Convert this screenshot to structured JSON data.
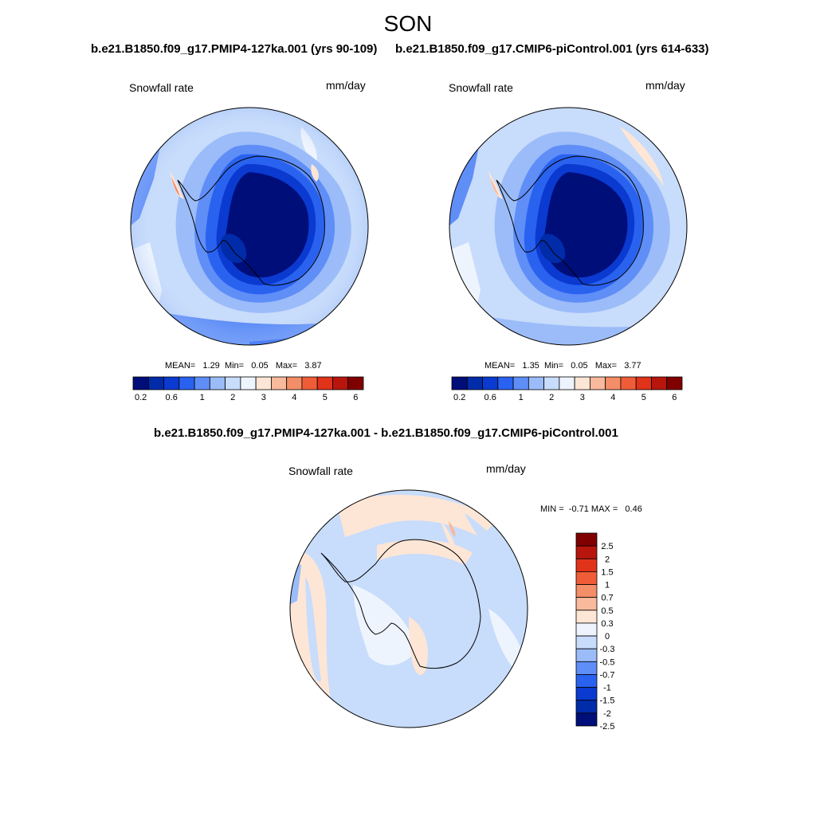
{
  "season": "SON",
  "colors": {
    "seq": [
      "#000e7a",
      "#002ba9",
      "#0a3ad0",
      "#2a62f0",
      "#5f8ef7",
      "#9bbcf9",
      "#c8dcfb",
      "#eef4fd",
      "#fde6d6",
      "#f8b99c",
      "#f38e68",
      "#ef5d38",
      "#e0331a",
      "#b8160d",
      "#800000"
    ],
    "div": [
      "#800000",
      "#b8160d",
      "#e0331a",
      "#ef5d38",
      "#f38e68",
      "#f8b99c",
      "#fde6d6",
      "#eef4fd",
      "#c8dcfb",
      "#9bbcf9",
      "#5f8ef7",
      "#2a62f0",
      "#0a3ad0",
      "#002ba9",
      "#000e7a"
    ]
  },
  "panels": [
    {
      "title": "b.e21.B1850.f09_g17.PMIP4-127ka.001 (yrs 90-109)",
      "variable": "Snowfall rate",
      "units": "mm/day",
      "stats": {
        "mean_label": "MEAN=",
        "mean": "1.29",
        "min_label": "Min=",
        "min": "0.05",
        "max_label": "Max=",
        "max": "3.87"
      },
      "colorbar_ticks": [
        "0.2",
        "0.6",
        "1",
        "2",
        "3",
        "4",
        "5",
        "6"
      ]
    },
    {
      "title": "b.e21.B1850.f09_g17.CMIP6-piControl.001 (yrs 614-633)",
      "variable": "Snowfall rate",
      "units": "mm/day",
      "stats": {
        "mean_label": "MEAN=",
        "mean": "1.35",
        "min_label": "Min=",
        "min": "0.05",
        "max_label": "Max=",
        "max": "3.77"
      },
      "colorbar_ticks": [
        "0.2",
        "0.6",
        "1",
        "2",
        "3",
        "4",
        "5",
        "6"
      ]
    }
  ],
  "diff": {
    "title": "b.e21.B1850.f09_g17.PMIP4-127ka.001 - b.e21.B1850.f09_g17.CMIP6-piControl.001",
    "variable": "Snowfall rate",
    "units": "mm/day",
    "stats": {
      "min_label": "MIN =",
      "min": "-0.71",
      "max_label": "MAX =",
      "max": "0.46"
    },
    "colorbar_labels": [
      "2.5",
      "2",
      "1.5",
      "1",
      "0.7",
      "0.5",
      "0.3",
      "0",
      "-0.3",
      "-0.5",
      "-0.7",
      "-1",
      "-1.5",
      "-2",
      "-2.5"
    ]
  }
}
